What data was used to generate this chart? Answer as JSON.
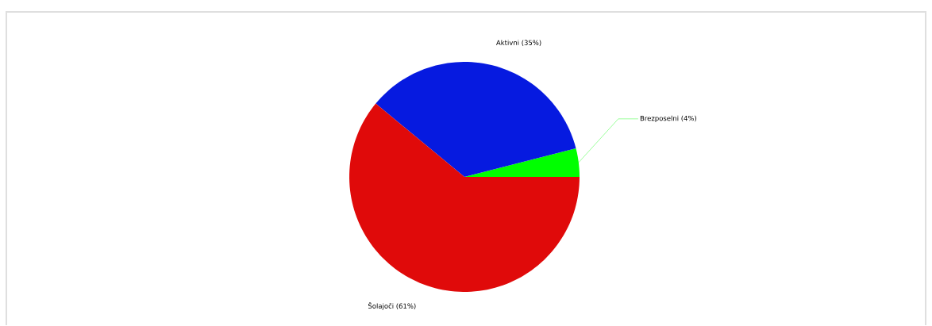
{
  "chart_data": {
    "type": "pie",
    "categories": [
      "Brezposelni",
      "Aktivni",
      "Šolajoči"
    ],
    "values": [
      4,
      35,
      61
    ],
    "value_labels": [
      "(4%)",
      "(35%)",
      "(61%)"
    ],
    "colors": [
      "#00ff00",
      "#061ae0",
      "#e00a0a"
    ]
  }
}
